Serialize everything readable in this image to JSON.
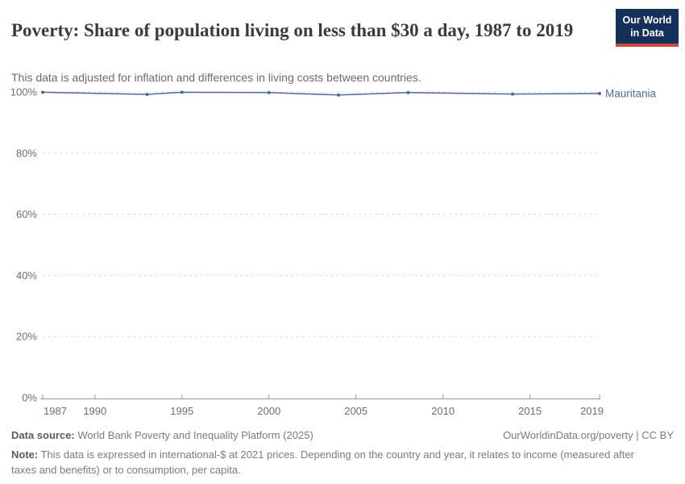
{
  "chart_data": {
    "type": "line",
    "title": "Poverty: Share of population living on less than $30 a day, 1987 to 2019",
    "subtitle": "This data is adjusted for inflation and differences in living costs between countries.",
    "xlabel": "",
    "ylabel": "",
    "xlim": [
      1987,
      2019
    ],
    "ylim": [
      0,
      100
    ],
    "grid": "horizontal-dashed",
    "legend_position": "right-of-line",
    "xticks": [
      1987,
      1990,
      1995,
      2000,
      2005,
      2010,
      2015,
      2019
    ],
    "xtick_labels": [
      "1987",
      "1990",
      "1995",
      "2000",
      "2005",
      "2010",
      "2015",
      "2019"
    ],
    "yticks": [
      0,
      20,
      40,
      60,
      80,
      100
    ],
    "ytick_labels": [
      "0%",
      "20%",
      "40%",
      "60%",
      "80%",
      "100%"
    ],
    "series": [
      {
        "name": "Mauritania",
        "color": "#4c6a9c",
        "x": [
          1987,
          1993,
          1995,
          2000,
          2004,
          2008,
          2014,
          2019
        ],
        "values": [
          99.9,
          99.2,
          99.9,
          99.8,
          99.0,
          99.8,
          99.3,
          99.5
        ]
      }
    ],
    "colors": {
      "grid": "#dcdcdc",
      "axis": "#999999",
      "axis_text": "#6e6e6e"
    }
  },
  "logo": {
    "line1": "Our World",
    "line2": "in Data",
    "bg": "#13315a",
    "stripe": "#d8453e"
  },
  "footer": {
    "data_source_label": "Data source:",
    "data_source": "World Bank Poverty and Inequality Platform (2025)",
    "credit": "OurWorldinData.org/poverty | CC BY",
    "note_label": "Note:",
    "note": "This data is expressed in international-$ at 2021 prices. Depending on the country and year, it relates to income (measured after taxes and benefits) or to consumption, per capita."
  }
}
